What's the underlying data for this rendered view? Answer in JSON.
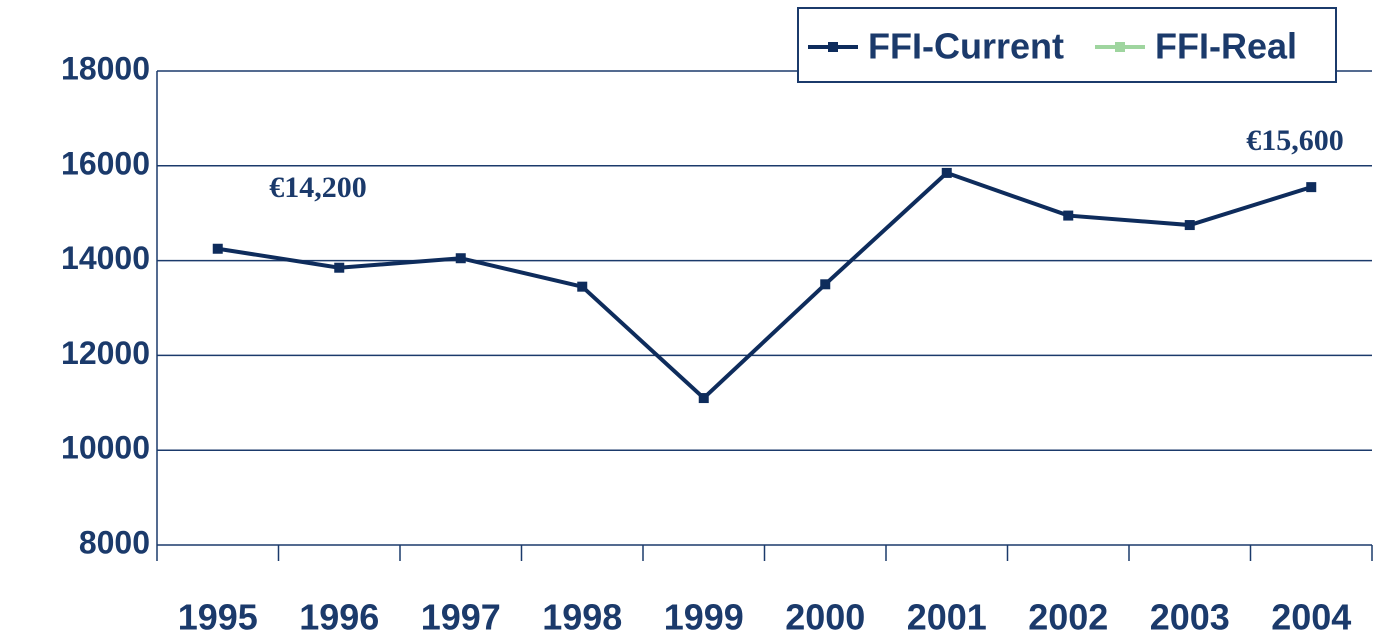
{
  "chart_data": {
    "type": "line",
    "categories": [
      "1995",
      "1996",
      "1997",
      "1998",
      "1999",
      "2000",
      "2001",
      "2002",
      "2003",
      "2004"
    ],
    "series": [
      {
        "name": "FFI-Current",
        "color": "#0e2c5c",
        "values": [
          14250,
          13850,
          14050,
          13450,
          11100,
          13500,
          15850,
          14950,
          14750,
          15550
        ]
      },
      {
        "name": "FFI-Real",
        "color": "#9fd59f",
        "values": [
          null,
          null,
          null,
          null,
          null,
          null,
          null,
          null,
          null,
          null
        ]
      }
    ],
    "annotations": [
      "€14,200",
      "€15,600"
    ],
    "ylim": [
      8000,
      18000
    ],
    "yticks": [
      8000,
      10000,
      12000,
      14000,
      16000,
      18000
    ],
    "grid": true
  }
}
